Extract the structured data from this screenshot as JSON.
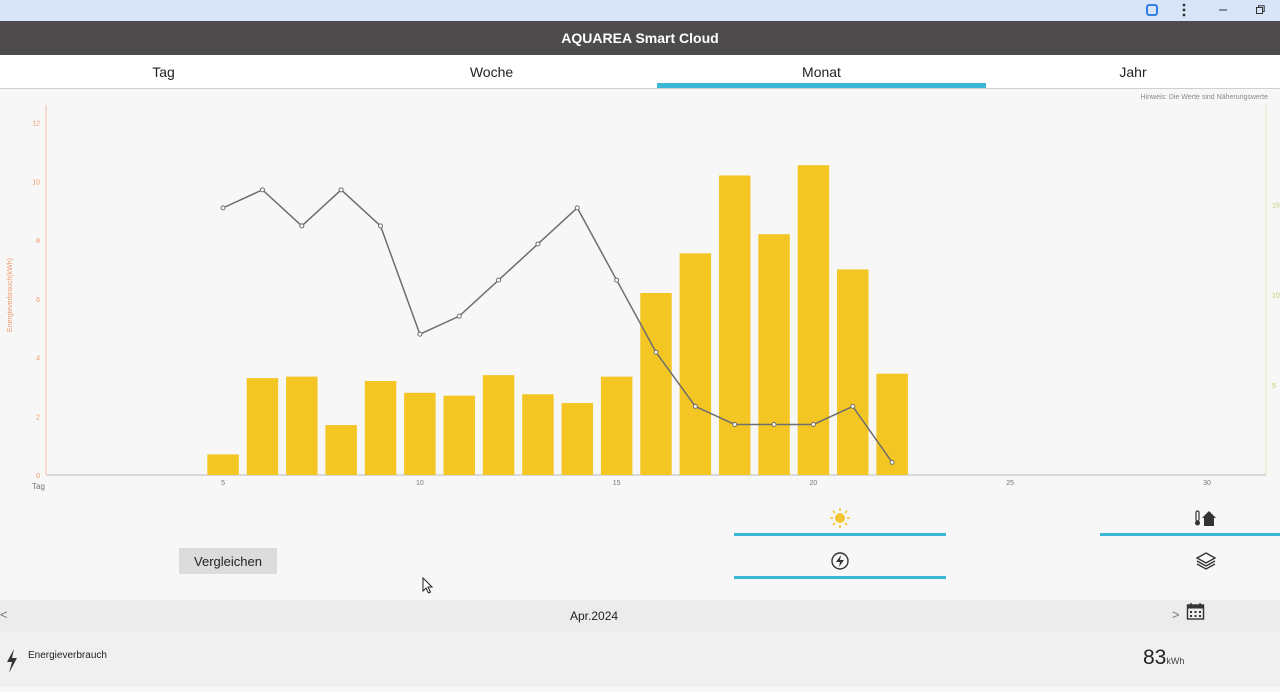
{
  "app": {
    "title": "AQUAREA Smart Cloud"
  },
  "tabs": [
    {
      "label": "Tag",
      "active": false
    },
    {
      "label": "Woche",
      "active": false
    },
    {
      "label": "Monat",
      "active": true
    },
    {
      "label": "Jahr",
      "active": false
    }
  ],
  "hint": "Hinweis: Die Werte sind Näherungswerte",
  "chart_data": {
    "type": "bar",
    "xlabel": "Tag",
    "ylabel": "Energieverbrauch(kWh)",
    "x_ticks": [
      5,
      10,
      15,
      20,
      25,
      30
    ],
    "y_ticks": [
      0,
      2,
      4,
      6,
      8,
      10,
      12
    ],
    "y2_ticks": [
      5,
      10,
      15
    ],
    "ylim": [
      0,
      12.6
    ],
    "xlim": [
      0.5,
      31.5
    ],
    "y2lim": [
      0,
      20.5
    ],
    "bar_color": "#f4c623",
    "line_color": "#6e6e6e",
    "bars": [
      {
        "day": 5,
        "value": 0.7
      },
      {
        "day": 6,
        "value": 3.3
      },
      {
        "day": 7,
        "value": 3.35
      },
      {
        "day": 8,
        "value": 1.7
      },
      {
        "day": 9,
        "value": 3.2
      },
      {
        "day": 10,
        "value": 2.8
      },
      {
        "day": 11,
        "value": 2.7
      },
      {
        "day": 12,
        "value": 3.4
      },
      {
        "day": 13,
        "value": 2.75
      },
      {
        "day": 14,
        "value": 2.45
      },
      {
        "day": 15,
        "value": 3.35
      },
      {
        "day": 16,
        "value": 6.2
      },
      {
        "day": 17,
        "value": 7.55
      },
      {
        "day": 18,
        "value": 10.2
      },
      {
        "day": 19,
        "value": 8.2
      },
      {
        "day": 20,
        "value": 10.55
      },
      {
        "day": 21,
        "value": 7.0
      },
      {
        "day": 22,
        "value": 3.45
      }
    ],
    "temperature_line": [
      {
        "day": 5,
        "value": 14.8
      },
      {
        "day": 6,
        "value": 15.8
      },
      {
        "day": 7,
        "value": 13.8
      },
      {
        "day": 8,
        "value": 15.8
      },
      {
        "day": 9,
        "value": 13.8
      },
      {
        "day": 10,
        "value": 7.8
      },
      {
        "day": 11,
        "value": 8.8
      },
      {
        "day": 12,
        "value": 10.8
      },
      {
        "day": 13,
        "value": 12.8
      },
      {
        "day": 14,
        "value": 14.8
      },
      {
        "day": 15,
        "value": 10.8
      },
      {
        "day": 16,
        "value": 6.8
      },
      {
        "day": 17,
        "value": 3.8
      },
      {
        "day": 18,
        "value": 2.8
      },
      {
        "day": 19,
        "value": 2.8
      },
      {
        "day": 20,
        "value": 2.8
      },
      {
        "day": 21,
        "value": 3.8
      },
      {
        "day": 22,
        "value": 0.7
      }
    ]
  },
  "controls": {
    "compare_label": "Vergleichen",
    "icons": {
      "sun": "sun-icon",
      "house_temp": "house-temperature-icon",
      "energy": "energy-icon",
      "layers": "layers-icon"
    }
  },
  "date": {
    "prev": "<",
    "next": ">",
    "value": "Apr.2024"
  },
  "total": {
    "label": "Energieverbrauch",
    "value": "83",
    "unit": "kWh"
  },
  "colors": {
    "accent": "#3ab7d6",
    "header": "#4d4b4c",
    "bar": "#f4c623",
    "axis_left": "#f19a6a",
    "axis_right": "#b9cf6a"
  }
}
